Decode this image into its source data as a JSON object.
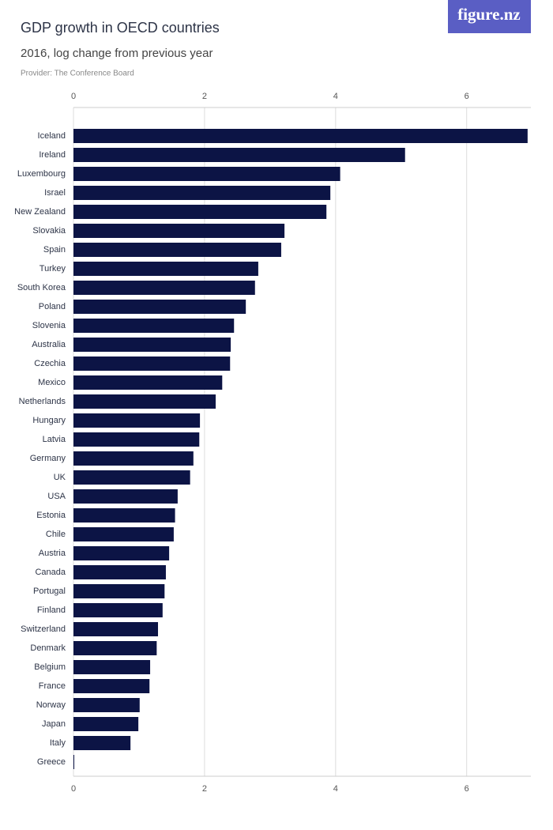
{
  "logo": "figure.nz",
  "chart_data": {
    "type": "hbar",
    "title": "GDP growth in OECD countries",
    "subtitle": "2016, log change from previous year",
    "source": "Provider: The Conference Board",
    "categories": [
      "Iceland",
      "Ireland",
      "Luxembourg",
      "Israel",
      "New Zealand",
      "Slovakia",
      "Spain",
      "Turkey",
      "South Korea",
      "Poland",
      "Slovenia",
      "Australia",
      "Czechia",
      "Mexico",
      "Netherlands",
      "Hungary",
      "Latvia",
      "Germany",
      "UK",
      "USA",
      "Estonia",
      "Chile",
      "Austria",
      "Canada",
      "Portugal",
      "Finland",
      "Switzerland",
      "Denmark",
      "Belgium",
      "France",
      "Norway",
      "Japan",
      "Italy",
      "Greece"
    ],
    "values": [
      6.93,
      5.06,
      4.07,
      3.92,
      3.86,
      3.22,
      3.17,
      2.82,
      2.77,
      2.63,
      2.45,
      2.4,
      2.39,
      2.27,
      2.17,
      1.93,
      1.92,
      1.83,
      1.78,
      1.59,
      1.55,
      1.53,
      1.46,
      1.41,
      1.39,
      1.36,
      1.29,
      1.27,
      1.17,
      1.16,
      1.01,
      0.99,
      0.87,
      0
    ],
    "color": "#0c1445",
    "xlim": [
      0,
      6.98
    ],
    "xticks": [
      0,
      2,
      4,
      6
    ],
    "grid": true
  }
}
